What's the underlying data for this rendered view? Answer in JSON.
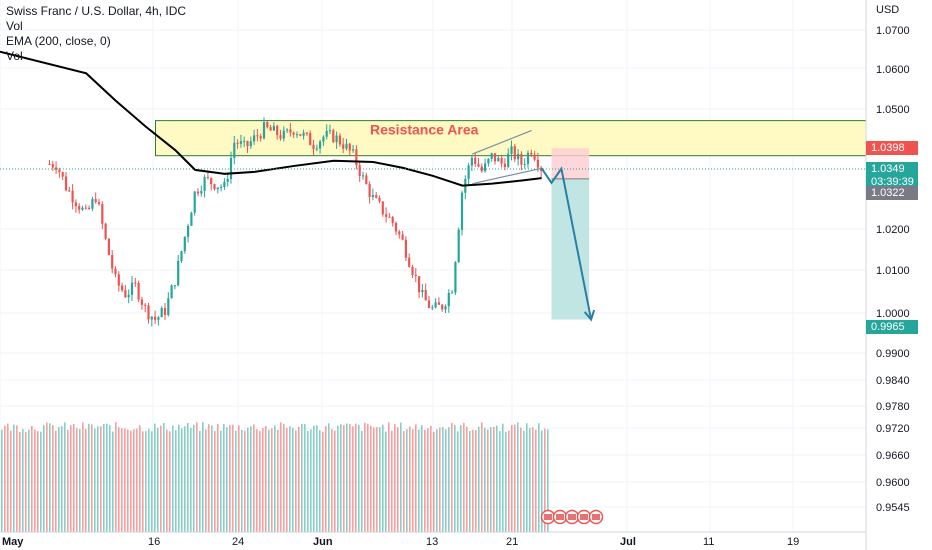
{
  "legend": {
    "title": "Swiss Franc / U.S. Dollar, 4h, IDC",
    "line2": "Vol",
    "line3": "EMA (200, close, 0)",
    "line4": "Vol"
  },
  "axis_currency": "USD",
  "annotation": "Resistance Area",
  "colors": {
    "up": "#26a69a",
    "down": "#ef5350",
    "ema": "#000000",
    "zone_fill": "#fff9c4",
    "zone_border": "#2e7d32",
    "target_fill": "#b2dfdb",
    "stop_fill": "#ffcdd2",
    "arrow": "#2a7fa5",
    "grid": "#f0f3fa",
    "channel": "#7a8fa6"
  },
  "price_labels": {
    "resistance": "1.0398",
    "current": "1.0349",
    "countdown": "03:39:39",
    "entry": "1.0322",
    "target": "0.9965"
  },
  "chart_data": {
    "type": "candlestick",
    "title": "Swiss Franc / U.S. Dollar, 4h, IDC",
    "ylabel": "USD",
    "price_axis_ticks": [
      "1.0700",
      "1.0600",
      "1.0500",
      "1.0200",
      "1.0100",
      "1.0000",
      "0.9900"
    ],
    "volume_axis_ticks": [
      "0.9840",
      "0.9780",
      "0.9720",
      "0.9660",
      "0.9600",
      "0.9545"
    ],
    "x_tick_labels": [
      "May",
      "16",
      "24",
      "Jun",
      "13",
      "21",
      "Jul",
      "11",
      "19"
    ],
    "price_path": [
      [
        "May 6",
        1.036
      ],
      [
        "May 7",
        1.03
      ],
      [
        "May 9",
        1.023
      ],
      [
        "May 10",
        1.028
      ],
      [
        "May 11",
        1.016
      ],
      [
        "May 12",
        1.006
      ],
      [
        "May 13",
        1.003
      ],
      [
        "May 14",
        1.005
      ],
      [
        "May 15",
        0.999
      ],
      [
        "May 16",
        0.9965
      ],
      [
        "May 17",
        0.999
      ],
      [
        "May 18",
        1.007
      ],
      [
        "May 19",
        1.018
      ],
      [
        "May 20",
        1.029
      ],
      [
        "May 21",
        1.032
      ],
      [
        "May 23",
        1.03
      ],
      [
        "May 24",
        1.042
      ],
      [
        "May 25",
        1.04
      ],
      [
        "May 27",
        1.045
      ],
      [
        "May 28",
        1.044
      ],
      [
        "May 29",
        1.043
      ],
      [
        "May 30",
        1.045
      ],
      [
        "Jun 1",
        1.041
      ],
      [
        "Jun 2",
        1.043
      ],
      [
        "Jun 3",
        1.043
      ],
      [
        "Jun 4",
        1.041
      ],
      [
        "Jun 5",
        1.038
      ],
      [
        "Jun 6",
        1.032
      ],
      [
        "Jun 7",
        1.027
      ],
      [
        "Jun 8",
        1.024
      ],
      [
        "Jun 9",
        1.021
      ],
      [
        "Jun 10",
        1.016
      ],
      [
        "Jun 11",
        1.009
      ],
      [
        "Jun 12",
        1.002
      ],
      [
        "Jun 13",
        0.999
      ],
      [
        "Jun 14",
        1.0
      ],
      [
        "Jun 15",
        1.005
      ],
      [
        "Jun 16",
        1.03
      ],
      [
        "Jun 17",
        1.038
      ],
      [
        "Jun 18",
        1.034
      ],
      [
        "Jun 19",
        1.038
      ],
      [
        "Jun 20",
        1.036
      ],
      [
        "Jun 21",
        1.039
      ],
      [
        "Jun 22",
        1.036
      ],
      [
        "Jun 23",
        1.04
      ],
      [
        "Jun 24",
        1.0349
      ]
    ],
    "ema_200": [
      [
        "May 6",
        1.0645
      ],
      [
        "May 9",
        1.059
      ],
      [
        "May 12",
        1.052
      ],
      [
        "May 15",
        1.0455
      ],
      [
        "May 18",
        1.0395
      ],
      [
        "May 20",
        1.0345
      ],
      [
        "May 23",
        1.0335
      ],
      [
        "May 26",
        1.034
      ],
      [
        "May 30",
        1.0355
      ],
      [
        "Jun 3",
        1.0368
      ],
      [
        "Jun 7",
        1.0365
      ],
      [
        "Jun 10",
        1.035
      ],
      [
        "Jun 13",
        1.033
      ],
      [
        "Jun 16",
        1.0305
      ],
      [
        "Jun 19",
        1.031
      ],
      [
        "Jun 22",
        1.0318
      ],
      [
        "Jun 24",
        1.0324
      ]
    ],
    "resistance_zone": {
      "from": "May 16",
      "to": "end",
      "low": 1.0381,
      "high": 1.047
    },
    "short_position": {
      "from": "Jun 25",
      "to": "Jun 29",
      "entry": 1.0322,
      "stop": 1.04,
      "target": 0.9965
    },
    "projection_path": [
      [
        "Jun 24",
        1.0349
      ],
      [
        "Jun 25",
        1.0312
      ],
      [
        "Jun 26",
        1.0348
      ],
      [
        "Jun 29",
        0.9965
      ]
    ],
    "wedge": {
      "upper": [
        [
          "Jun 17",
          1.0385
        ],
        [
          "Jun 23",
          1.0445
        ]
      ],
      "lower": [
        [
          "Jun 17",
          1.031
        ],
        [
          "Jun 24",
          1.0349
        ]
      ]
    },
    "grid": true
  }
}
